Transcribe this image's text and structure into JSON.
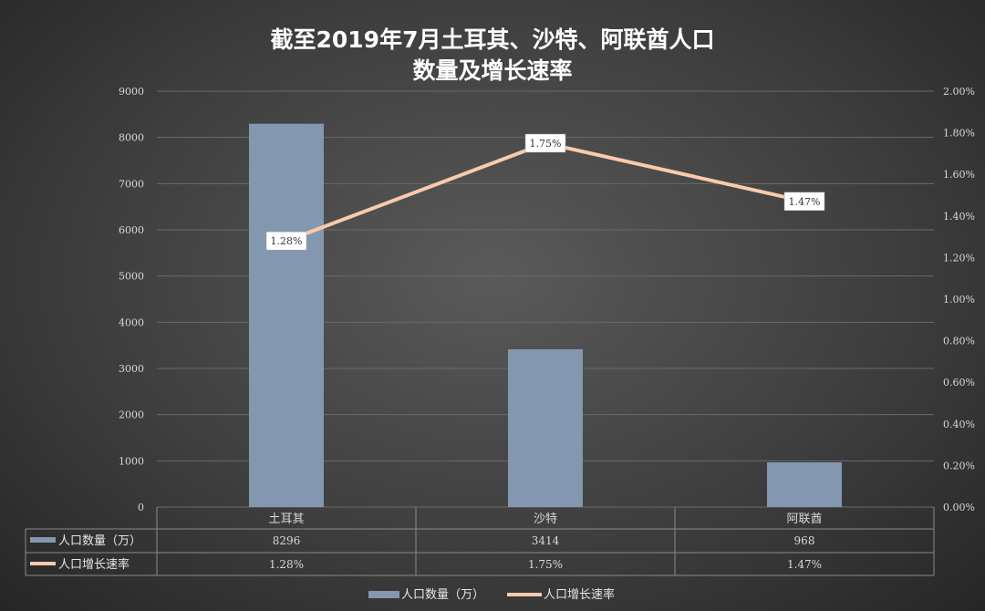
{
  "chart_data": {
    "type": "bar",
    "title_line1": "截至2019年7月土耳其、沙特、阿联酋人口",
    "title_line2": "数量及增长速率",
    "categories": [
      "土耳其",
      "沙特",
      "阿联酋"
    ],
    "series": [
      {
        "name": "人口数量（万）",
        "type": "bar",
        "axis": "left",
        "values": [
          8296,
          3414,
          968
        ],
        "labels": [
          "8296",
          "3414",
          "968"
        ],
        "color": "#8497b0"
      },
      {
        "name": "人口增长速率",
        "type": "line",
        "axis": "right",
        "values": [
          1.28,
          1.75,
          1.47
        ],
        "labels": [
          "1.28%",
          "1.75%",
          "1.47%"
        ],
        "color": "#f8cbad"
      }
    ],
    "y_left": {
      "min": 0,
      "max": 9000,
      "step": 1000,
      "ticks": [
        "0",
        "1000",
        "2000",
        "3000",
        "4000",
        "5000",
        "6000",
        "7000",
        "8000",
        "9000"
      ]
    },
    "y_right": {
      "min": 0,
      "max": 2.0,
      "step": 0.2,
      "ticks": [
        "0.00%",
        "0.20%",
        "0.40%",
        "0.60%",
        "0.80%",
        "1.00%",
        "1.20%",
        "1.40%",
        "1.60%",
        "1.80%",
        "2.00%"
      ]
    },
    "grid": true,
    "legend_position": "bottom",
    "data_table": true
  }
}
